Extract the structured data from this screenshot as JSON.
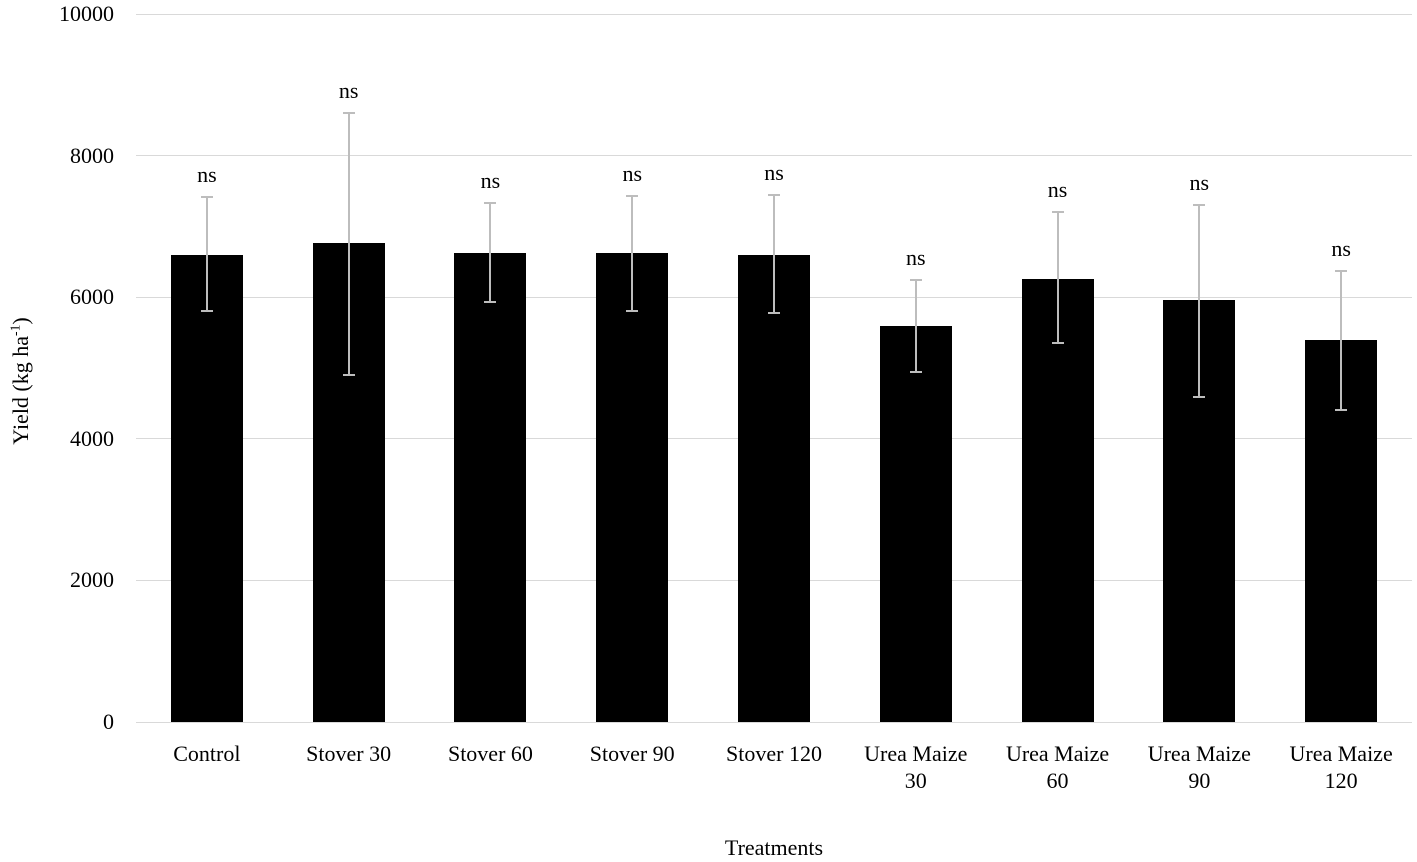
{
  "chart_data": {
    "type": "bar",
    "title": "",
    "xlabel": "Treatments",
    "ylabel": "Yield (kg ha⁻¹)",
    "ylabel_parts": {
      "prefix": "Yield (kg ha",
      "sup": "-1",
      "suffix": ")"
    },
    "ylim": [
      0,
      10000
    ],
    "yticks": [
      0,
      2000,
      4000,
      6000,
      8000,
      10000
    ],
    "grid": "horizontal",
    "legend": "none",
    "bar_color": "#000000",
    "gridline_color": "#d9d9d9",
    "error_bar_color": "#bdbdbd",
    "text_color": "#000000",
    "categories": [
      "Control",
      "Stover 30",
      "Stover 60",
      "Stover 90",
      "Stover 120",
      "Urea Maize 30",
      "Urea Maize 60",
      "Urea Maize 90",
      "Urea Maize 120"
    ],
    "tick_labels": [
      "Control",
      "Stover 30",
      "Stover 60",
      "Stover 90",
      "Stover 120",
      "Urea Maize\n30",
      "Urea Maize\n60",
      "Urea Maize\n90",
      "Urea Maize\n120"
    ],
    "series": [
      {
        "name": "Yield",
        "values": [
          6600,
          6760,
          6630,
          6630,
          6600,
          5600,
          6260,
          5960,
          5400
        ],
        "error_upper": [
          7420,
          8600,
          7330,
          7430,
          7440,
          6240,
          7200,
          7300,
          6370
        ],
        "error_lower": [
          5800,
          4900,
          5930,
          5810,
          5770,
          4940,
          5350,
          4590,
          4410
        ]
      }
    ],
    "annotations": [
      "ns",
      "ns",
      "ns",
      "ns",
      "ns",
      "ns",
      "ns",
      "ns",
      "ns"
    ]
  }
}
